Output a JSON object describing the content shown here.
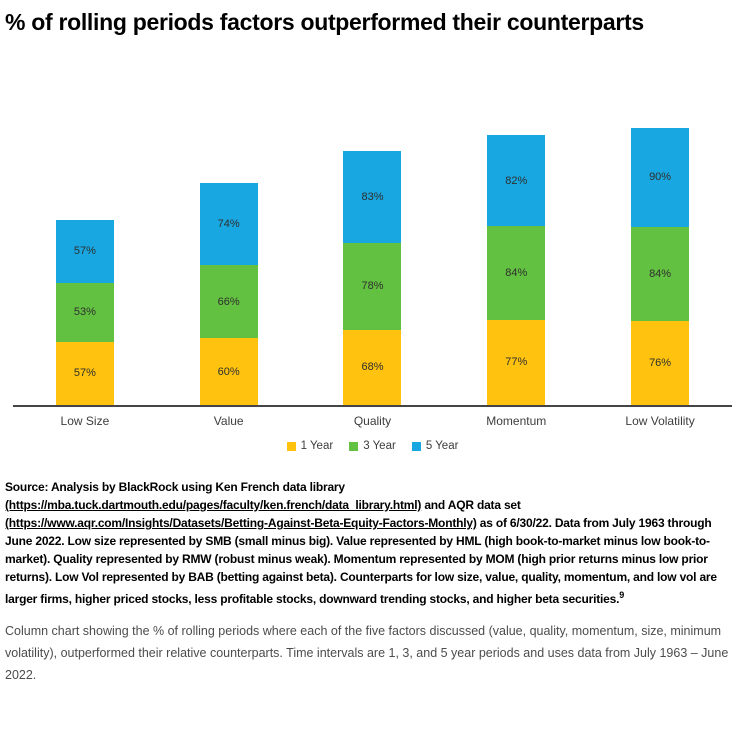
{
  "title": "% of rolling periods factors outperformed their counterparts",
  "chart_data": {
    "type": "bar",
    "stacked": true,
    "title": "% of rolling periods factors outperformed their counterparts",
    "categories": [
      "Low Size",
      "Value",
      "Quality",
      "Momentum",
      "Low Volatility"
    ],
    "series": [
      {
        "name": "1 Year",
        "color": "#FFC20E",
        "values": [
          57,
          60,
          68,
          77,
          76
        ]
      },
      {
        "name": "3 Year",
        "color": "#62C140",
        "values": [
          53,
          66,
          78,
          84,
          84
        ]
      },
      {
        "name": "5 Year",
        "color": "#18A7E0",
        "values": [
          57,
          74,
          83,
          82,
          90
        ]
      }
    ],
    "value_suffix": "%",
    "stack_order_bottom_to_top": [
      "1 Year",
      "3 Year",
      "5 Year"
    ],
    "ylim": [
      0,
      252
    ],
    "grid": false,
    "y_axis_shown": false,
    "legend_position": "bottom",
    "axis_line_color": "#454545"
  },
  "source": {
    "text_before_link1": "Source: Analysis by BlackRock using Ken French data library ",
    "link1": "(https://mba.tuck.dartmouth.edu/pages/faculty/ken.french/data_library.html)",
    "text_between_links": " and AQR data set ",
    "link2": "(https://www.aqr.com/Insights/Datasets/Betting-Against-Beta-Equity-Factors-Monthly)",
    "text_after_link2": " as of 6/30/22. Data from July 1963 through June 2022. Low size represented by SMB (small minus big). Value represented by HML (high book-to-market minus low book-to-market). Quality represented by RMW (robust minus weak). Momentum represented by MOM (high prior returns minus low prior returns). Low Vol represented by BAB (betting against beta). Counterparts for low size, value, quality, momentum, and low vol are larger firms, higher priced stocks, less profitable stocks, downward trending stocks, and higher beta securities.",
    "footnote_marker": "9"
  },
  "description": "Column chart showing the % of rolling periods where each of the five factors discussed (value, quality, momentum, size, minimum volatility), outperformed their relative counterparts. Time intervals are 1, 3, and 5 year periods and uses data from July 1963 – June 2022."
}
